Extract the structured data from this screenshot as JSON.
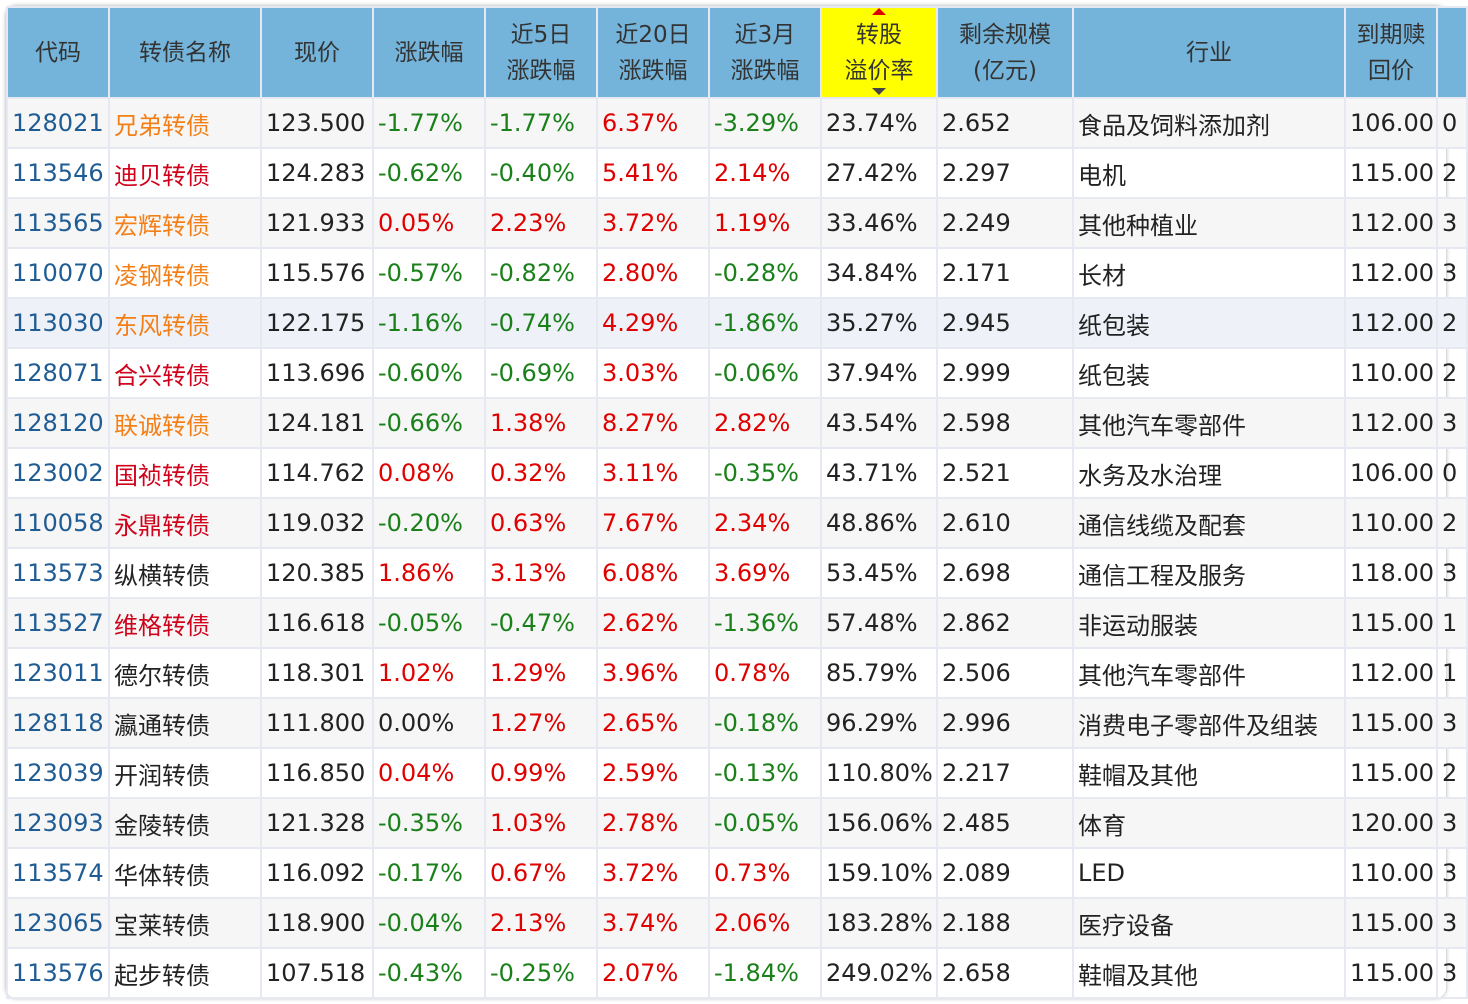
{
  "headers": [
    "代码",
    "转债名称",
    "现价",
    "涨跌幅",
    "近5日\n涨跌幅",
    "近20日\n涨跌幅",
    "近3月\n涨跌幅",
    "转股\n溢价率",
    "剩余规模\n(亿元)",
    "行业",
    "到期赎\n回价"
  ],
  "colors": {
    "header": "#74b4da",
    "sorted": "#ffff00",
    "up": "#e00000",
    "down": "#1a801a",
    "orange": "#f57f17",
    "red": "#d0021b"
  },
  "rows": [
    [
      "128021",
      "兄弟转债",
      "orange",
      "123.500",
      "-1.77%",
      "-1.77%",
      "6.37%",
      "-3.29%",
      "23.74%",
      "2.652",
      "食品及饲料添加剂",
      "106.00",
      "0"
    ],
    [
      "113546",
      "迪贝转债",
      "red",
      "124.283",
      "-0.62%",
      "-0.40%",
      "5.41%",
      "2.14%",
      "27.42%",
      "2.297",
      "电机",
      "115.00",
      "2"
    ],
    [
      "113565",
      "宏辉转债",
      "orange",
      "121.933",
      "0.05%",
      "2.23%",
      "3.72%",
      "1.19%",
      "33.46%",
      "2.249",
      "其他种植业",
      "112.00",
      "3"
    ],
    [
      "110070",
      "凌钢转债",
      "orange",
      "115.576",
      "-0.57%",
      "-0.82%",
      "2.80%",
      "-0.28%",
      "34.84%",
      "2.171",
      "长材",
      "112.00",
      "3"
    ],
    [
      "113030",
      "东风转债",
      "orange",
      "122.175",
      "-1.16%",
      "-0.74%",
      "4.29%",
      "-1.86%",
      "35.27%",
      "2.945",
      "纸包装",
      "112.00",
      "2"
    ],
    [
      "128071",
      "合兴转债",
      "red",
      "113.696",
      "-0.60%",
      "-0.69%",
      "3.03%",
      "-0.06%",
      "37.94%",
      "2.999",
      "纸包装",
      "110.00",
      "2"
    ],
    [
      "128120",
      "联诚转债",
      "orange",
      "124.181",
      "-0.66%",
      "1.38%",
      "8.27%",
      "2.82%",
      "43.54%",
      "2.598",
      "其他汽车零部件",
      "112.00",
      "3"
    ],
    [
      "123002",
      "国祯转债",
      "red",
      "114.762",
      "0.08%",
      "0.32%",
      "3.11%",
      "-0.35%",
      "43.71%",
      "2.521",
      "水务及水治理",
      "106.00",
      "0"
    ],
    [
      "110058",
      "永鼎转债",
      "red",
      "119.032",
      "-0.20%",
      "0.63%",
      "7.67%",
      "2.34%",
      "48.86%",
      "2.610",
      "通信线缆及配套",
      "110.00",
      "2"
    ],
    [
      "113573",
      "纵横转债",
      "",
      "120.385",
      "1.86%",
      "3.13%",
      "6.08%",
      "3.69%",
      "53.45%",
      "2.698",
      "通信工程及服务",
      "118.00",
      "3"
    ],
    [
      "113527",
      "维格转债",
      "red",
      "116.618",
      "-0.05%",
      "-0.47%",
      "2.62%",
      "-1.36%",
      "57.48%",
      "2.862",
      "非运动服装",
      "115.00",
      "1"
    ],
    [
      "123011",
      "德尔转债",
      "",
      "118.301",
      "1.02%",
      "1.29%",
      "3.96%",
      "0.78%",
      "85.79%",
      "2.506",
      "其他汽车零部件",
      "112.00",
      "1"
    ],
    [
      "128118",
      "瀛通转债",
      "",
      "111.800",
      "0.00%",
      "1.27%",
      "2.65%",
      "-0.18%",
      "96.29%",
      "2.996",
      "消费电子零部件及组装",
      "115.00",
      "3"
    ],
    [
      "123039",
      "开润转债",
      "",
      "116.850",
      "0.04%",
      "0.99%",
      "2.59%",
      "-0.13%",
      "110.80%",
      "2.217",
      "鞋帽及其他",
      "115.00",
      "2"
    ],
    [
      "123093",
      "金陵转债",
      "",
      "121.328",
      "-0.35%",
      "1.03%",
      "2.78%",
      "-0.05%",
      "156.06%",
      "2.485",
      "体育",
      "120.00",
      "3"
    ],
    [
      "113574",
      "华体转债",
      "",
      "116.092",
      "-0.17%",
      "0.67%",
      "3.72%",
      "0.73%",
      "159.10%",
      "2.089",
      "LED",
      "110.00",
      "3"
    ],
    [
      "123065",
      "宝莱转债",
      "",
      "118.900",
      "-0.04%",
      "2.13%",
      "3.74%",
      "2.06%",
      "183.28%",
      "2.188",
      "医疗设备",
      "115.00",
      "3"
    ],
    [
      "113576",
      "起步转债",
      "",
      "107.518",
      "-0.43%",
      "-0.25%",
      "2.07%",
      "-1.84%",
      "249.02%",
      "2.658",
      "鞋帽及其他",
      "115.00",
      "3"
    ]
  ]
}
